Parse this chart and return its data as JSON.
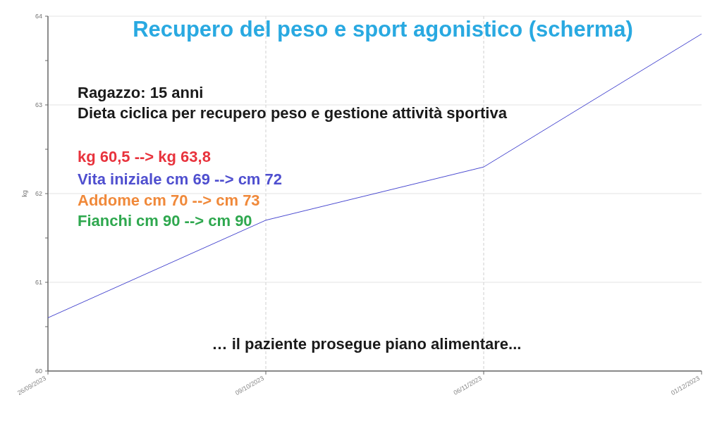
{
  "chart_data": {
    "type": "line",
    "title": "Recupero del peso e sport agonistico (scherma)",
    "ylabel": "kg",
    "categories": [
      "26/09/2023",
      "09/10/2023",
      "06/11/2023",
      "01/12/2023"
    ],
    "series": [
      {
        "color": "#4a4ad0",
        "values": [
          60.6,
          61.7,
          62.3,
          63.8
        ]
      }
    ],
    "ylim": [
      60,
      64
    ],
    "yticks": [
      60,
      {
        "value": 60.5,
        "label": null
      },
      61,
      {
        "value": 61.5,
        "label": null
      },
      62,
      {
        "value": 62.5,
        "label": null
      },
      63,
      {
        "value": 63.5,
        "label": null
      },
      64
    ],
    "grid": true,
    "marker": "none",
    "line_style": "solid",
    "annotations": [
      "Ragazzo: 15 anni",
      "Dieta ciclica per recupero peso e gestione attività sportiva",
      "kg 60,5 --> kg 63,8",
      "Vita iniziale  cm 69  -->  cm  72",
      "Addome  cm 70  --> cm 73",
      "Fianchi  cm 90 --> cm 90",
      "… il paziente prosegue piano alimentare..."
    ]
  }
}
